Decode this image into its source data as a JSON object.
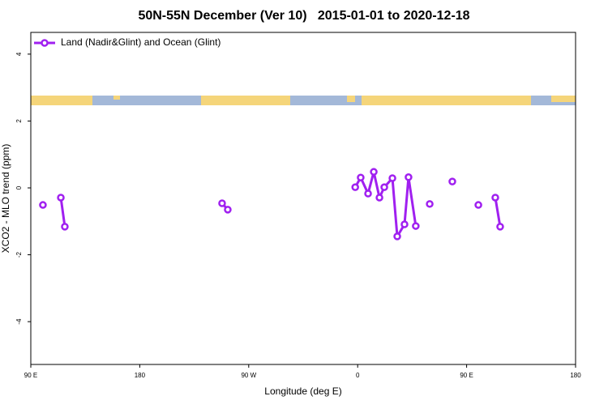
{
  "chart_data": {
    "type": "line",
    "title": "50N-55N December (Ver 10)   2015-01-01 to 2020-12-18",
    "x_label": "Longitude (deg E)",
    "y_label": "XCO2 - MLO trend (ppm)",
    "xlim": [
      90,
      540
    ],
    "xticks": [
      {
        "value": 90,
        "label": "90 E"
      },
      {
        "value": 180,
        "label": "180"
      },
      {
        "value": 270,
        "label": "90 W"
      },
      {
        "value": 360,
        "label": "0"
      },
      {
        "value": 450,
        "label": "90 E"
      },
      {
        "value": 540,
        "label": "180"
      }
    ],
    "ylim": [
      -5.28,
      4.65
    ],
    "yticks": [
      -4,
      -2,
      0,
      2,
      4
    ],
    "legend": "top-left",
    "series": [
      {
        "name": "Land (Nadir&Glint) and Ocean (Glint)",
        "color": "#a020f0",
        "x": [
          100,
          null,
          114.8,
          118.1,
          null,
          248,
          252.7,
          null,
          358,
          362.5,
          368.6,
          373.3,
          378,
          382,
          388.7,
          392.7,
          398.7,
          402,
          408,
          null,
          419.5,
          null,
          438.2,
          null,
          459.7,
          null,
          473.7,
          477.7
        ],
        "values": [
          -0.51,
          null,
          -0.29,
          -1.16,
          null,
          -0.46,
          -0.65,
          null,
          0.02,
          0.31,
          -0.17,
          0.48,
          -0.29,
          0.02,
          0.29,
          -1.45,
          -1.09,
          0.32,
          -1.14,
          null,
          -0.48,
          null,
          0.19,
          null,
          -0.51,
          null,
          -0.29,
          -1.16
        ]
      }
    ]
  }
}
